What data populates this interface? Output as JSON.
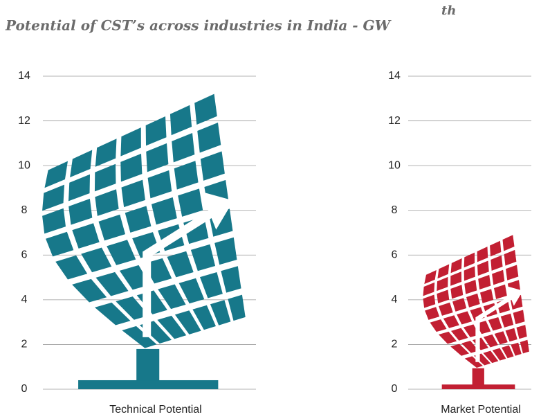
{
  "title": "Potential of CST’s across industries in India - GW",
  "title_superscript": "th",
  "chart_data": [
    {
      "type": "pictogram",
      "categories": [
        "Technical Potential"
      ],
      "values": [
        13.4
      ],
      "color": "#17788a",
      "ylim": [
        0,
        14
      ],
      "yticks": [
        0,
        2,
        4,
        6,
        8,
        10,
        12,
        14
      ],
      "grid": true
    },
    {
      "type": "pictogram",
      "categories": [
        "Market Potential"
      ],
      "values": [
        7
      ],
      "color": "#c21f32",
      "ylim": [
        0,
        14
      ],
      "yticks": [
        0,
        2,
        4,
        6,
        8,
        10,
        12,
        14
      ],
      "grid": true
    }
  ]
}
